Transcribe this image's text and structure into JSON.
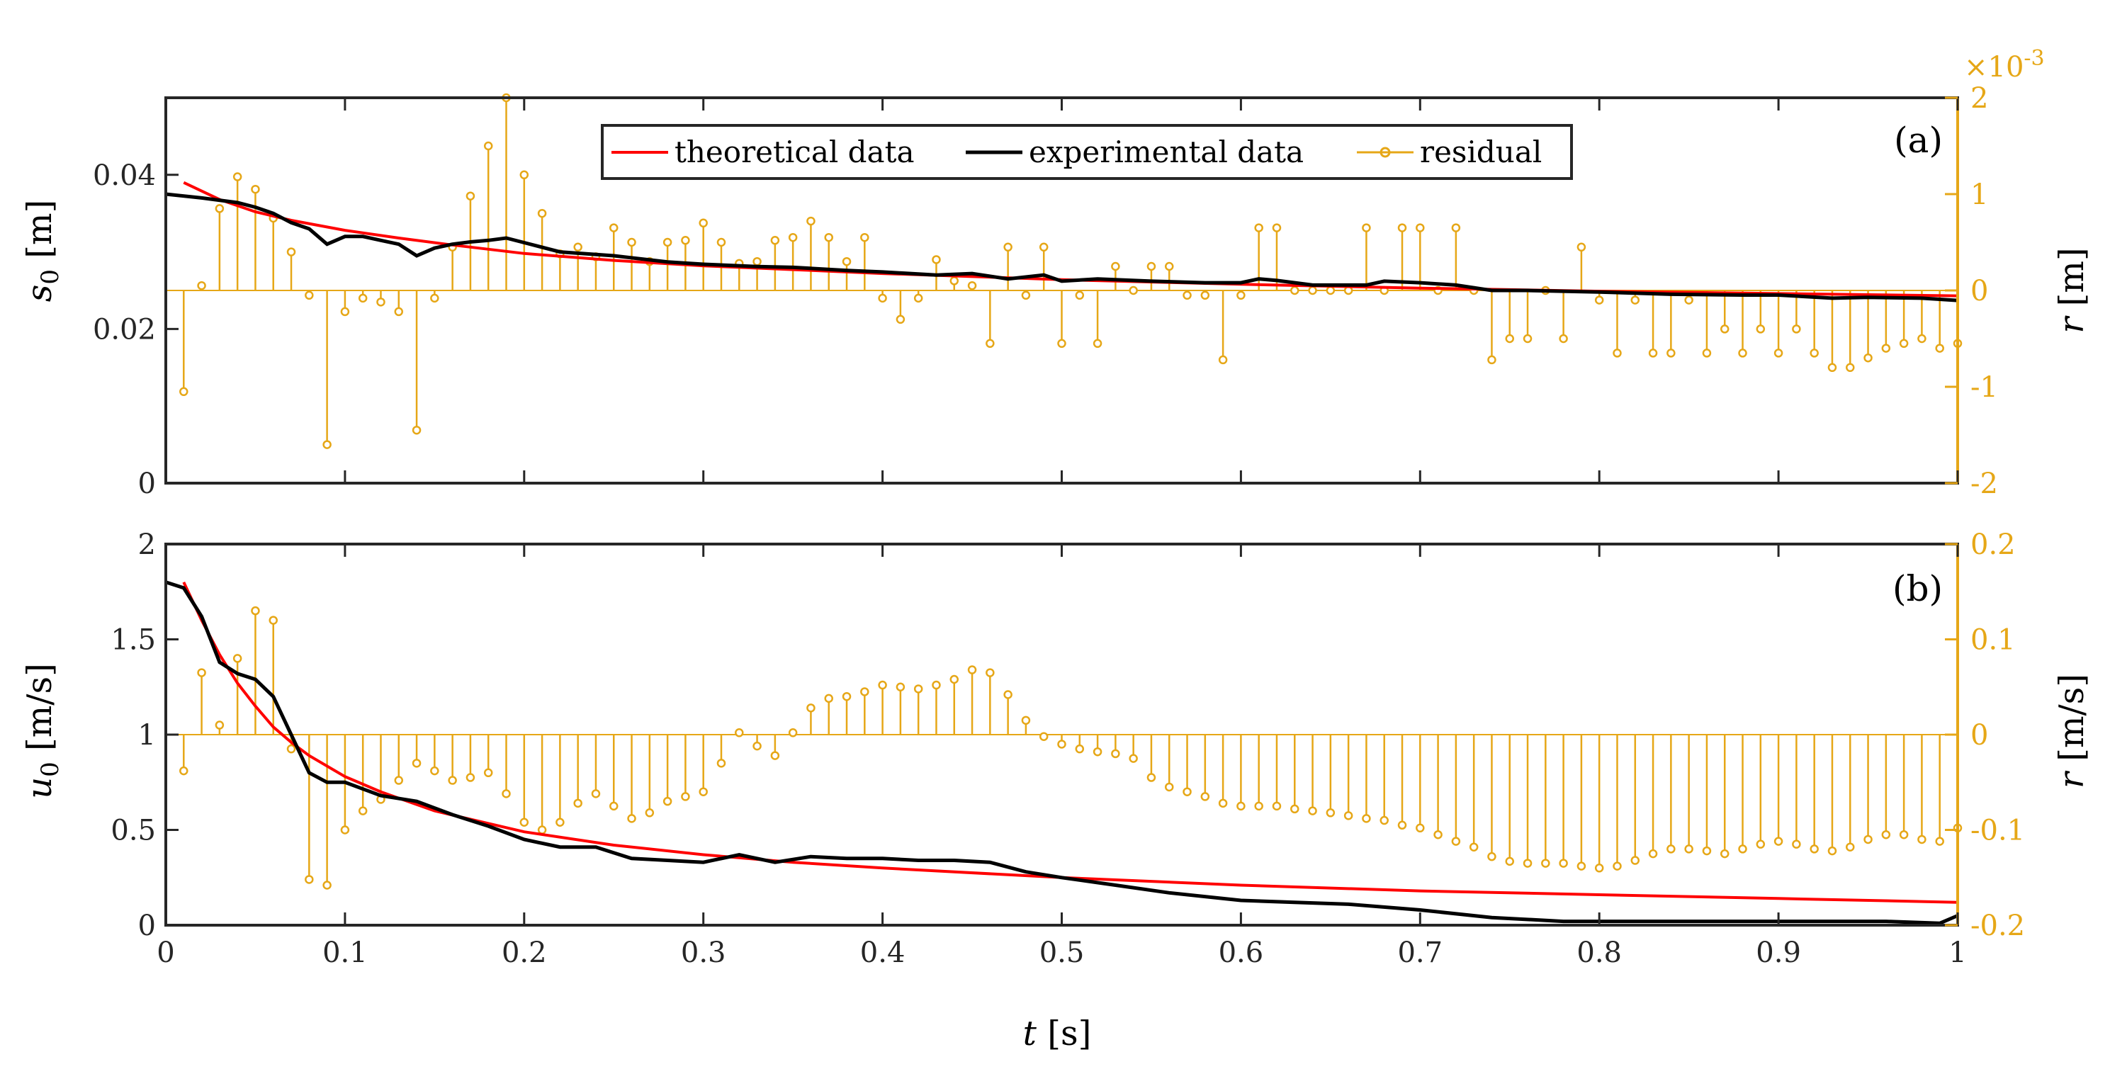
{
  "colors": {
    "theoretical": "#ff0000",
    "experimental": "#000000",
    "residual": "#e6a717",
    "axis": "#262626"
  },
  "legend": {
    "theoretical": "theoretical data",
    "experimental": "experimental data",
    "residual": "residual"
  },
  "xaxis": {
    "label_italic": "t",
    "label_unit": "[s]",
    "ticks": [
      "0",
      "0.1",
      "0.2",
      "0.3",
      "0.4",
      "0.5",
      "0.6",
      "0.7",
      "0.8",
      "0.9",
      "1"
    ]
  },
  "chart_data": [
    {
      "type": "line",
      "panel": "(a)",
      "ylabel_left": {
        "symbol": "s",
        "subscript": "0",
        "unit": "[m]"
      },
      "ylabel_right": {
        "symbol": "r",
        "unit": "[m]"
      },
      "right_axis_exponent": {
        "base": "×10",
        "power": "-3"
      },
      "xlim": [
        0,
        1
      ],
      "ylim_left": [
        0,
        0.05
      ],
      "ylim_right": [
        -2,
        2
      ],
      "left_ticks": {
        "values": [
          0,
          0.02,
          0.04
        ],
        "labels": [
          "0",
          "0.02",
          "0.04"
        ]
      },
      "right_ticks": {
        "values": [
          -2,
          -1,
          0,
          1,
          2
        ],
        "labels": [
          "-2",
          "-1",
          "0",
          "1",
          "2"
        ]
      },
      "x": [
        0,
        0.02,
        0.04,
        0.05,
        0.06,
        0.07,
        0.08,
        0.09,
        0.1,
        0.11,
        0.12,
        0.13,
        0.14,
        0.15,
        0.16,
        0.17,
        0.18,
        0.19,
        0.2,
        0.22,
        0.25,
        0.28,
        0.3,
        0.33,
        0.35,
        0.38,
        0.4,
        0.43,
        0.45,
        0.47,
        0.49,
        0.5,
        0.52,
        0.55,
        0.58,
        0.6,
        0.61,
        0.62,
        0.64,
        0.67,
        0.68,
        0.7,
        0.72,
        0.74,
        0.76,
        0.8,
        0.84,
        0.88,
        0.9,
        0.93,
        0.95,
        0.98,
        1.0
      ],
      "series": [
        {
          "name": "experimental data",
          "values": [
            0.0375,
            0.037,
            0.0364,
            0.0358,
            0.035,
            0.0338,
            0.033,
            0.031,
            0.032,
            0.032,
            0.0315,
            0.031,
            0.0295,
            0.0305,
            0.031,
            0.0313,
            0.0315,
            0.0318,
            0.0312,
            0.03,
            0.0295,
            0.0287,
            0.0284,
            0.0281,
            0.028,
            0.0276,
            0.0274,
            0.027,
            0.0272,
            0.0265,
            0.027,
            0.0262,
            0.0265,
            0.0262,
            0.026,
            0.026,
            0.0265,
            0.0263,
            0.0257,
            0.0257,
            0.0262,
            0.026,
            0.0257,
            0.025,
            0.025,
            0.0248,
            0.0245,
            0.0244,
            0.0244,
            0.024,
            0.0241,
            0.024,
            0.0237
          ]
        },
        {
          "name": "theoretical data",
          "x": [
            0.01,
            0.03,
            0.05,
            0.07,
            0.1,
            0.13,
            0.16,
            0.2,
            0.25,
            0.3,
            0.35,
            0.4,
            0.45,
            0.5,
            0.6,
            0.7,
            0.8,
            0.9,
            1.0
          ],
          "values": [
            0.039,
            0.0368,
            0.0352,
            0.0341,
            0.0328,
            0.0318,
            0.0309,
            0.0298,
            0.0289,
            0.0282,
            0.0277,
            0.0272,
            0.0268,
            0.0264,
            0.0258,
            0.0253,
            0.0249,
            0.0246,
            0.0243
          ]
        },
        {
          "name": "residual",
          "axis": "right",
          "x": [
            0.01,
            0.02,
            0.03,
            0.04,
            0.05,
            0.06,
            0.07,
            0.08,
            0.09,
            0.1,
            0.11,
            0.12,
            0.13,
            0.14,
            0.15,
            0.16,
            0.17,
            0.18,
            0.19,
            0.2,
            0.21,
            0.22,
            0.23,
            0.24,
            0.25,
            0.26,
            0.27,
            0.28,
            0.29,
            0.3,
            0.31,
            0.32,
            0.33,
            0.34,
            0.35,
            0.36,
            0.37,
            0.38,
            0.39,
            0.4,
            0.41,
            0.42,
            0.43,
            0.44,
            0.45,
            0.46,
            0.47,
            0.48,
            0.49,
            0.5,
            0.51,
            0.52,
            0.53,
            0.54,
            0.55,
            0.56,
            0.57,
            0.58,
            0.59,
            0.6,
            0.61,
            0.62,
            0.63,
            0.64,
            0.65,
            0.66,
            0.67,
            0.68,
            0.69,
            0.7,
            0.71,
            0.72,
            0.73,
            0.74,
            0.75,
            0.76,
            0.77,
            0.78,
            0.79,
            0.8,
            0.81,
            0.82,
            0.83,
            0.84,
            0.85,
            0.86,
            0.87,
            0.88,
            0.89,
            0.9,
            0.91,
            0.92,
            0.93,
            0.94,
            0.95,
            0.96,
            0.97,
            0.98,
            0.99,
            1.0
          ],
          "values": [
            -1.05,
            0.05,
            0.85,
            1.18,
            1.05,
            0.75,
            0.4,
            -0.05,
            -1.6,
            -0.22,
            -0.08,
            -0.12,
            -0.22,
            -1.45,
            -0.08,
            0.45,
            0.98,
            1.5,
            2.0,
            1.2,
            0.8,
            0.38,
            0.45,
            0.35,
            0.65,
            0.5,
            0.3,
            0.5,
            0.52,
            0.7,
            0.5,
            0.28,
            0.3,
            0.52,
            0.55,
            0.72,
            0.55,
            0.3,
            0.55,
            -0.08,
            -0.3,
            -0.08,
            0.32,
            0.1,
            0.05,
            -0.55,
            0.45,
            -0.05,
            0.45,
            -0.55,
            -0.05,
            -0.55,
            0.25,
            0.0,
            0.25,
            0.25,
            -0.05,
            -0.05,
            -0.72,
            -0.05,
            0.65,
            0.65,
            0.0,
            0.0,
            0.0,
            0.0,
            0.65,
            0.0,
            0.65,
            0.65,
            0.0,
            0.65,
            0.0,
            -0.72,
            -0.5,
            -0.5,
            0.0,
            -0.5,
            0.45,
            -0.1,
            -0.65,
            -0.1,
            -0.65,
            -0.65,
            -0.1,
            -0.65,
            -0.4,
            -0.65,
            -0.4,
            -0.65,
            -0.4,
            -0.65,
            -0.8,
            -0.8,
            -0.7,
            -0.6,
            -0.55,
            -0.5,
            -0.6,
            -0.55
          ]
        }
      ]
    },
    {
      "type": "line",
      "panel": "(b)",
      "ylabel_left": {
        "symbol": "u",
        "subscript": "0",
        "unit": "[m/s]"
      },
      "ylabel_right": {
        "symbol": "r",
        "unit": "[m/s]"
      },
      "xlim": [
        0,
        1
      ],
      "ylim_left": [
        0,
        2
      ],
      "ylim_right": [
        -0.2,
        0.2
      ],
      "left_ticks": {
        "values": [
          0,
          0.5,
          1,
          1.5,
          2
        ],
        "labels": [
          "0",
          "0.5",
          "1",
          "1.5",
          "2"
        ]
      },
      "right_ticks": {
        "values": [
          -0.2,
          -0.1,
          0,
          0.1,
          0.2
        ],
        "labels": [
          "-0.2",
          "-0.1",
          "0",
          "0.1",
          "0.2"
        ]
      },
      "x": [
        0,
        0.01,
        0.02,
        0.03,
        0.04,
        0.05,
        0.06,
        0.07,
        0.08,
        0.09,
        0.1,
        0.12,
        0.14,
        0.16,
        0.18,
        0.2,
        0.22,
        0.24,
        0.26,
        0.28,
        0.3,
        0.32,
        0.34,
        0.36,
        0.38,
        0.4,
        0.42,
        0.44,
        0.46,
        0.48,
        0.5,
        0.53,
        0.56,
        0.6,
        0.63,
        0.66,
        0.7,
        0.74,
        0.78,
        0.82,
        0.86,
        0.9,
        0.93,
        0.96,
        0.99,
        1.0
      ],
      "series": [
        {
          "name": "experimental data",
          "values": [
            1.8,
            1.77,
            1.62,
            1.38,
            1.32,
            1.29,
            1.2,
            1.0,
            0.8,
            0.75,
            0.75,
            0.68,
            0.65,
            0.58,
            0.52,
            0.45,
            0.41,
            0.41,
            0.35,
            0.34,
            0.33,
            0.37,
            0.33,
            0.36,
            0.35,
            0.35,
            0.34,
            0.34,
            0.33,
            0.28,
            0.25,
            0.21,
            0.17,
            0.13,
            0.12,
            0.11,
            0.08,
            0.04,
            0.02,
            0.02,
            0.02,
            0.02,
            0.02,
            0.02,
            0.01,
            0.05
          ]
        },
        {
          "name": "theoretical data",
          "x": [
            0.01,
            0.02,
            0.03,
            0.04,
            0.05,
            0.06,
            0.07,
            0.08,
            0.1,
            0.12,
            0.15,
            0.2,
            0.25,
            0.3,
            0.35,
            0.4,
            0.5,
            0.6,
            0.7,
            0.8,
            0.9,
            1.0
          ],
          "values": [
            1.8,
            1.6,
            1.42,
            1.27,
            1.15,
            1.04,
            0.96,
            0.89,
            0.78,
            0.7,
            0.6,
            0.49,
            0.42,
            0.37,
            0.33,
            0.3,
            0.25,
            0.21,
            0.18,
            0.16,
            0.14,
            0.12
          ]
        },
        {
          "name": "residual",
          "axis": "right",
          "x": [
            0.01,
            0.02,
            0.03,
            0.04,
            0.05,
            0.06,
            0.07,
            0.08,
            0.09,
            0.1,
            0.11,
            0.12,
            0.13,
            0.14,
            0.15,
            0.16,
            0.17,
            0.18,
            0.19,
            0.2,
            0.21,
            0.22,
            0.23,
            0.24,
            0.25,
            0.26,
            0.27,
            0.28,
            0.29,
            0.3,
            0.31,
            0.32,
            0.33,
            0.34,
            0.35,
            0.36,
            0.37,
            0.38,
            0.39,
            0.4,
            0.41,
            0.42,
            0.43,
            0.44,
            0.45,
            0.46,
            0.47,
            0.48,
            0.49,
            0.5,
            0.51,
            0.52,
            0.53,
            0.54,
            0.55,
            0.56,
            0.57,
            0.58,
            0.59,
            0.6,
            0.61,
            0.62,
            0.63,
            0.64,
            0.65,
            0.66,
            0.67,
            0.68,
            0.69,
            0.7,
            0.71,
            0.72,
            0.73,
            0.74,
            0.75,
            0.76,
            0.77,
            0.78,
            0.79,
            0.8,
            0.81,
            0.82,
            0.83,
            0.84,
            0.85,
            0.86,
            0.87,
            0.88,
            0.89,
            0.9,
            0.91,
            0.92,
            0.93,
            0.94,
            0.95,
            0.96,
            0.97,
            0.98,
            0.99,
            1.0
          ],
          "values": [
            -0.038,
            0.065,
            0.01,
            0.08,
            0.13,
            0.12,
            -0.015,
            -0.152,
            -0.158,
            -0.1,
            -0.08,
            -0.068,
            -0.048,
            -0.03,
            -0.038,
            -0.048,
            -0.045,
            -0.04,
            -0.062,
            -0.092,
            -0.1,
            -0.092,
            -0.072,
            -0.062,
            -0.075,
            -0.088,
            -0.082,
            -0.07,
            -0.065,
            -0.06,
            -0.03,
            0.002,
            -0.012,
            -0.022,
            0.002,
            0.028,
            0.038,
            0.04,
            0.045,
            0.052,
            0.05,
            0.048,
            0.052,
            0.058,
            0.068,
            0.065,
            0.042,
            0.015,
            -0.002,
            -0.01,
            -0.015,
            -0.018,
            -0.02,
            -0.025,
            -0.045,
            -0.055,
            -0.06,
            -0.065,
            -0.072,
            -0.075,
            -0.075,
            -0.075,
            -0.078,
            -0.08,
            -0.082,
            -0.085,
            -0.088,
            -0.09,
            -0.095,
            -0.098,
            -0.105,
            -0.112,
            -0.118,
            -0.128,
            -0.133,
            -0.135,
            -0.135,
            -0.135,
            -0.138,
            -0.14,
            -0.138,
            -0.132,
            -0.125,
            -0.12,
            -0.12,
            -0.122,
            -0.125,
            -0.12,
            -0.115,
            -0.112,
            -0.115,
            -0.12,
            -0.122,
            -0.118,
            -0.11,
            -0.105,
            -0.105,
            -0.11,
            -0.112,
            -0.098
          ]
        }
      ]
    }
  ]
}
